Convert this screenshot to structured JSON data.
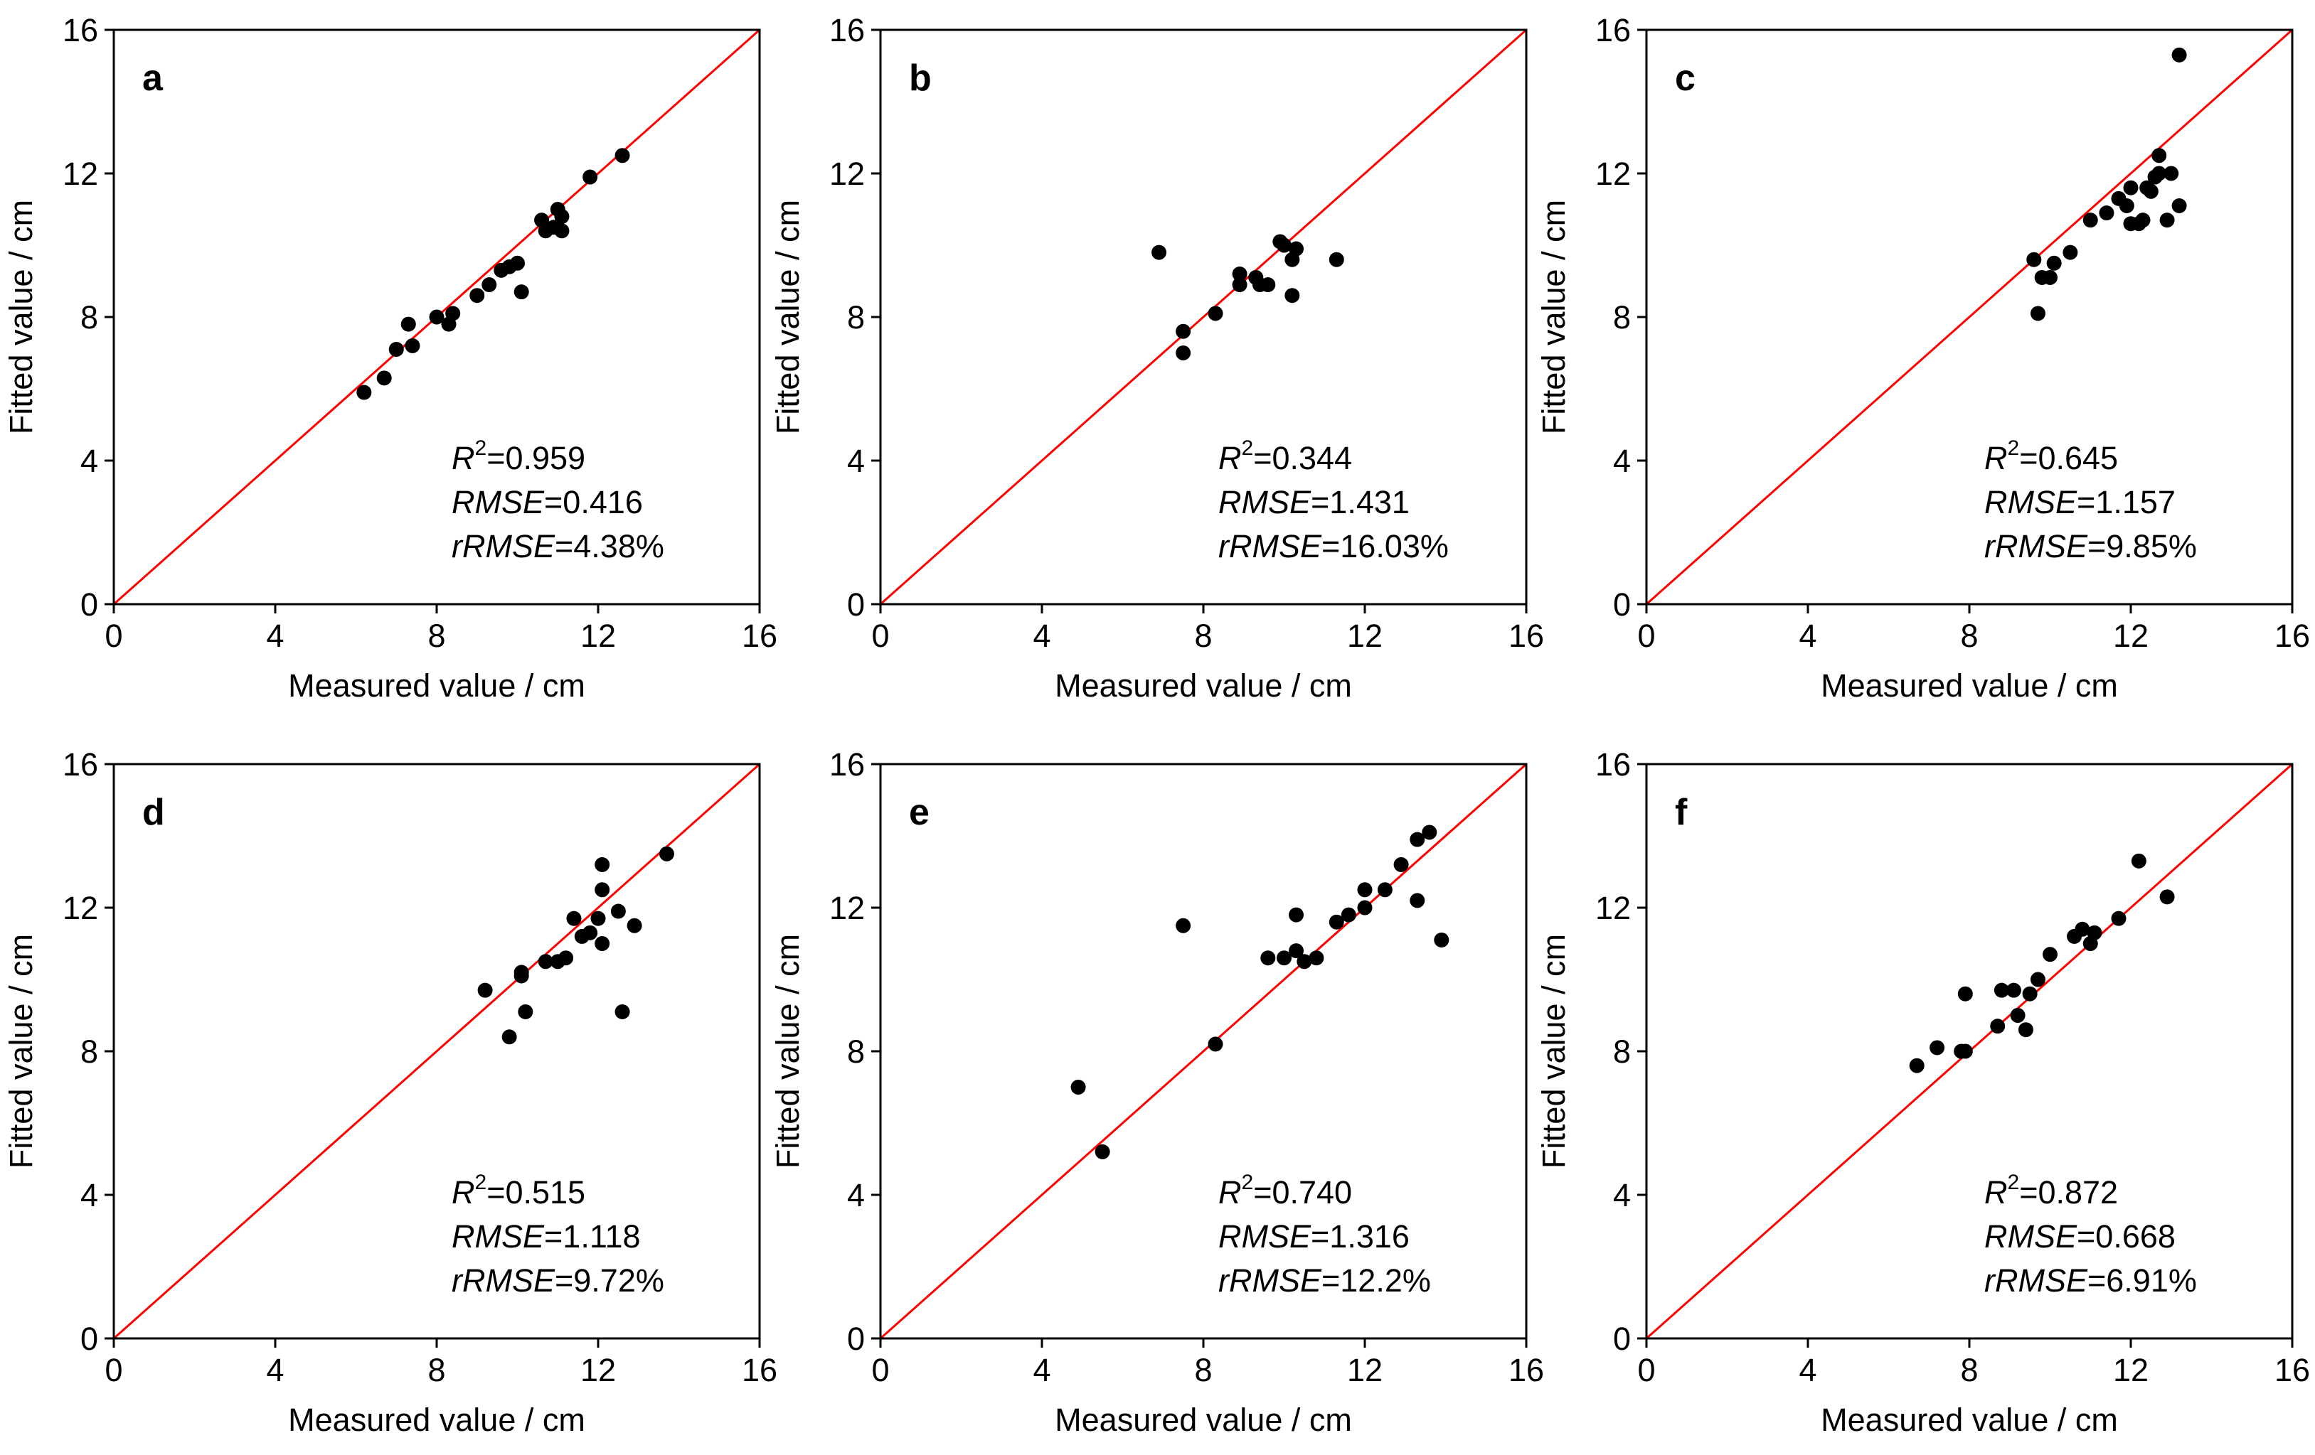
{
  "chart_data": [
    {
      "type": "scatter",
      "panel": "a",
      "xlabel": "Measured value / cm",
      "ylabel": "Fitted value / cm",
      "xlim": [
        0,
        16
      ],
      "ylim": [
        0,
        16
      ],
      "xticks": [
        "0",
        "4",
        "8",
        "12",
        "16"
      ],
      "yticks": [
        "0",
        "4",
        "8",
        "12",
        "16"
      ],
      "reference_line": "1:1",
      "stats": {
        "r2_label": "R",
        "r2_sup": "2",
        "r2": "=0.959",
        "rmse_label": "RMSE",
        "rmse": "=0.416",
        "rrmse_label": "rRMSE",
        "rrmse": "=4.38%"
      },
      "points": [
        [
          6.2,
          5.9
        ],
        [
          6.7,
          6.3
        ],
        [
          7.0,
          7.1
        ],
        [
          7.3,
          7.8
        ],
        [
          7.4,
          7.2
        ],
        [
          8.0,
          8.0
        ],
        [
          8.3,
          7.8
        ],
        [
          8.4,
          8.1
        ],
        [
          9.0,
          8.6
        ],
        [
          9.3,
          8.9
        ],
        [
          9.6,
          9.3
        ],
        [
          9.8,
          9.4
        ],
        [
          10.0,
          9.5
        ],
        [
          10.1,
          8.7
        ],
        [
          10.6,
          10.7
        ],
        [
          10.7,
          10.4
        ],
        [
          10.9,
          10.5
        ],
        [
          11.0,
          11.0
        ],
        [
          11.1,
          10.4
        ],
        [
          11.1,
          10.8
        ],
        [
          11.8,
          11.9
        ],
        [
          12.6,
          12.5
        ]
      ]
    },
    {
      "type": "scatter",
      "panel": "b",
      "xlabel": "Measured value / cm",
      "ylabel": "Fitted value / cm",
      "xlim": [
        0,
        16
      ],
      "ylim": [
        0,
        16
      ],
      "xticks": [
        "0",
        "4",
        "8",
        "12",
        "16"
      ],
      "yticks": [
        "0",
        "4",
        "8",
        "12",
        "16"
      ],
      "reference_line": "1:1",
      "stats": {
        "r2_label": "R",
        "r2_sup": "2",
        "r2": "=0.344",
        "rmse_label": "RMSE",
        "rmse": "=1.431",
        "rrmse_label": "rRMSE",
        "rrmse": "=16.03%"
      },
      "points": [
        [
          6.9,
          9.8
        ],
        [
          7.5,
          7.6
        ],
        [
          7.5,
          7.0
        ],
        [
          8.3,
          8.1
        ],
        [
          8.9,
          9.2
        ],
        [
          8.9,
          8.9
        ],
        [
          9.3,
          9.1
        ],
        [
          9.4,
          8.9
        ],
        [
          9.6,
          8.9
        ],
        [
          9.9,
          10.1
        ],
        [
          10.0,
          10.0
        ],
        [
          10.2,
          9.6
        ],
        [
          10.2,
          8.6
        ],
        [
          10.3,
          9.9
        ],
        [
          11.3,
          9.6
        ]
      ]
    },
    {
      "type": "scatter",
      "panel": "c",
      "xlabel": "Measured value / cm",
      "ylabel": "Fitted value / cm",
      "xlim": [
        0,
        16
      ],
      "ylim": [
        0,
        16
      ],
      "xticks": [
        "0",
        "4",
        "8",
        "12",
        "16"
      ],
      "yticks": [
        "0",
        "4",
        "8",
        "12",
        "16"
      ],
      "reference_line": "1:1",
      "stats": {
        "r2_label": "R",
        "r2_sup": "2",
        "r2": "=0.645",
        "rmse_label": "RMSE",
        "rmse": "=1.157",
        "rrmse_label": "rRMSE",
        "rrmse": "=9.85%"
      },
      "points": [
        [
          9.6,
          9.6
        ],
        [
          9.7,
          8.1
        ],
        [
          9.8,
          9.1
        ],
        [
          10.0,
          9.1
        ],
        [
          10.1,
          9.5
        ],
        [
          10.5,
          9.8
        ],
        [
          11.0,
          10.7
        ],
        [
          11.4,
          10.9
        ],
        [
          11.7,
          11.3
        ],
        [
          11.9,
          11.1
        ],
        [
          12.0,
          10.6
        ],
        [
          12.0,
          11.6
        ],
        [
          12.2,
          10.6
        ],
        [
          12.3,
          10.7
        ],
        [
          12.4,
          11.6
        ],
        [
          12.5,
          11.5
        ],
        [
          12.6,
          11.9
        ],
        [
          12.7,
          12.0
        ],
        [
          12.7,
          12.5
        ],
        [
          12.9,
          10.7
        ],
        [
          13.0,
          12.0
        ],
        [
          13.2,
          11.1
        ],
        [
          13.2,
          15.3
        ]
      ]
    },
    {
      "type": "scatter",
      "panel": "d",
      "xlabel": "Measured value / cm",
      "ylabel": "Fitted value / cm",
      "xlim": [
        0,
        16
      ],
      "ylim": [
        0,
        16
      ],
      "xticks": [
        "0",
        "4",
        "8",
        "12",
        "16"
      ],
      "yticks": [
        "0",
        "4",
        "8",
        "12",
        "16"
      ],
      "reference_line": "1:1",
      "stats": {
        "r2_label": "R",
        "r2_sup": "2",
        "r2": "=0.515",
        "rmse_label": "RMSE",
        "rmse": "=1.118",
        "rrmse_label": "rRMSE",
        "rrmse": "=9.72%"
      },
      "points": [
        [
          9.2,
          9.7
        ],
        [
          9.8,
          8.4
        ],
        [
          10.1,
          10.1
        ],
        [
          10.1,
          10.2
        ],
        [
          10.2,
          9.1
        ],
        [
          10.7,
          10.5
        ],
        [
          11.0,
          10.5
        ],
        [
          11.2,
          10.6
        ],
        [
          11.4,
          11.7
        ],
        [
          11.6,
          11.2
        ],
        [
          11.8,
          11.3
        ],
        [
          12.0,
          11.7
        ],
        [
          12.1,
          11.0
        ],
        [
          12.1,
          12.5
        ],
        [
          12.1,
          13.2
        ],
        [
          12.5,
          11.9
        ],
        [
          12.6,
          9.1
        ],
        [
          12.9,
          11.5
        ],
        [
          13.7,
          13.5
        ]
      ]
    },
    {
      "type": "scatter",
      "panel": "e",
      "xlabel": "Measured value / cm",
      "ylabel": "Fitted value / cm",
      "xlim": [
        0,
        16
      ],
      "ylim": [
        0,
        16
      ],
      "xticks": [
        "0",
        "4",
        "8",
        "12",
        "16"
      ],
      "yticks": [
        "0",
        "4",
        "8",
        "12",
        "16"
      ],
      "reference_line": "1:1",
      "stats": {
        "r2_label": "R",
        "r2_sup": "2",
        "r2": "=0.740",
        "rmse_label": "RMSE",
        "rmse": "=1.316",
        "rrmse_label": "rRMSE",
        "rrmse": "=12.2%"
      },
      "points": [
        [
          4.9,
          7.0
        ],
        [
          5.5,
          5.2
        ],
        [
          7.5,
          11.5
        ],
        [
          8.3,
          8.2
        ],
        [
          9.6,
          10.6
        ],
        [
          10.0,
          10.6
        ],
        [
          10.3,
          10.8
        ],
        [
          10.3,
          11.8
        ],
        [
          10.5,
          10.5
        ],
        [
          10.8,
          10.6
        ],
        [
          11.3,
          11.6
        ],
        [
          11.6,
          11.8
        ],
        [
          12.0,
          12.0
        ],
        [
          12.0,
          12.5
        ],
        [
          12.5,
          12.5
        ],
        [
          12.9,
          13.2
        ],
        [
          13.3,
          12.2
        ],
        [
          13.3,
          13.9
        ],
        [
          13.6,
          14.1
        ],
        [
          13.9,
          11.1
        ]
      ]
    },
    {
      "type": "scatter",
      "panel": "f",
      "xlabel": "Measured value / cm",
      "ylabel": "Fitted value / cm",
      "xlim": [
        0,
        16
      ],
      "ylim": [
        0,
        16
      ],
      "xticks": [
        "0",
        "4",
        "8",
        "12",
        "16"
      ],
      "yticks": [
        "0",
        "4",
        "8",
        "12",
        "16"
      ],
      "reference_line": "1:1",
      "stats": {
        "r2_label": "R",
        "r2_sup": "2",
        "r2": "=0.872",
        "rmse_label": "RMSE",
        "rmse": "=0.668",
        "rrmse_label": "rRMSE",
        "rrmse": "=6.91%"
      },
      "points": [
        [
          6.7,
          7.6
        ],
        [
          7.2,
          8.1
        ],
        [
          7.8,
          8.0
        ],
        [
          7.9,
          8.0
        ],
        [
          7.9,
          9.6
        ],
        [
          8.7,
          8.7
        ],
        [
          8.8,
          9.7
        ],
        [
          9.1,
          9.7
        ],
        [
          9.2,
          9.0
        ],
        [
          9.4,
          8.6
        ],
        [
          9.5,
          9.6
        ],
        [
          9.7,
          10.0
        ],
        [
          10.0,
          10.7
        ],
        [
          10.6,
          11.2
        ],
        [
          10.8,
          11.4
        ],
        [
          11.0,
          11.0
        ],
        [
          11.1,
          11.3
        ],
        [
          11.7,
          11.7
        ],
        [
          12.2,
          13.3
        ],
        [
          12.9,
          12.3
        ]
      ]
    }
  ],
  "colors": {
    "reference_line": "#ff0000",
    "points": "#000000",
    "axes": "#000000"
  }
}
